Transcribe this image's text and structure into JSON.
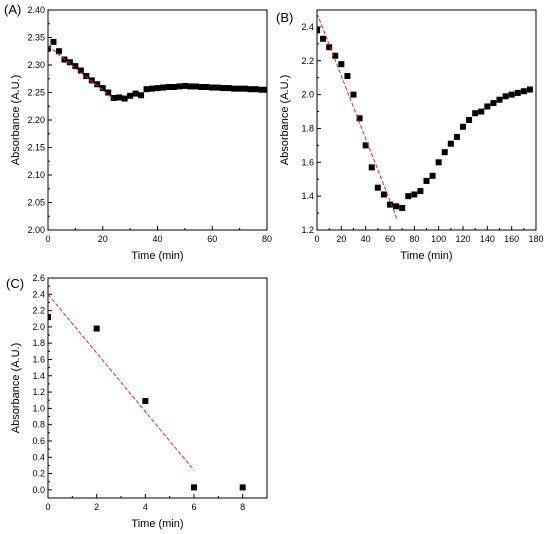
{
  "chart_data": [
    {
      "type": "scatter",
      "panel_label": "(A)",
      "xlabel": "Time (min)",
      "ylabel": "Absorbance (A.U.)",
      "xlim": [
        0,
        80
      ],
      "ylim": [
        2.0,
        2.4
      ],
      "xticks": [
        0,
        20,
        40,
        60,
        80
      ],
      "yticks": [
        2.0,
        2.05,
        2.1,
        2.15,
        2.2,
        2.25,
        2.3,
        2.35,
        2.4
      ],
      "ytick_labels": [
        "2.00",
        "2.05",
        "2.10",
        "2.15",
        "2.20",
        "2.25",
        "2.30",
        "2.35",
        "2.40"
      ],
      "grid": false,
      "marker_color": "#000000",
      "series": [
        {
          "x": [
            0,
            2,
            4,
            6,
            8,
            10,
            12,
            14,
            16,
            18,
            20,
            22,
            24,
            26,
            28,
            30,
            32,
            34,
            36,
            38,
            40,
            42,
            44,
            46,
            48,
            50,
            52,
            54,
            56,
            58,
            60,
            62,
            64,
            66,
            68,
            70,
            72,
            74,
            76,
            78,
            80
          ],
          "y": [
            2.33,
            2.342,
            2.325,
            2.31,
            2.305,
            2.298,
            2.29,
            2.28,
            2.272,
            2.265,
            2.258,
            2.25,
            2.24,
            2.241,
            2.239,
            2.244,
            2.248,
            2.245,
            2.256,
            2.257,
            2.258,
            2.259,
            2.26,
            2.26,
            2.261,
            2.262,
            2.261,
            2.261,
            2.26,
            2.26,
            2.259,
            2.259,
            2.258,
            2.258,
            2.257,
            2.257,
            2.257,
            2.256,
            2.256,
            2.255,
            2.255
          ]
        }
      ],
      "fit_line": {
        "x": [
          0,
          24
        ],
        "y": [
          2.335,
          2.238
        ],
        "color": "#e0281e"
      }
    },
    {
      "type": "scatter",
      "panel_label": "(B)",
      "xlabel": "Time (min)",
      "ylabel": "Absorbance (A.U.)",
      "xlim": [
        0,
        180
      ],
      "ylim": [
        1.2,
        2.5
      ],
      "xticks": [
        0,
        20,
        40,
        60,
        80,
        100,
        120,
        140,
        160,
        180
      ],
      "yticks": [
        1.2,
        1.4,
        1.6,
        1.8,
        2.0,
        2.2,
        2.4
      ],
      "ytick_labels": [
        "1.2",
        "1.4",
        "1.6",
        "1.8",
        "2.0",
        "2.2",
        "2.4"
      ],
      "grid": false,
      "marker_color": "#000000",
      "series": [
        {
          "x": [
            0,
            5,
            10,
            15,
            20,
            25,
            30,
            35,
            40,
            45,
            50,
            55,
            60,
            65,
            70,
            75,
            80,
            85,
            90,
            95,
            100,
            105,
            110,
            115,
            120,
            125,
            130,
            135,
            140,
            145,
            150,
            155,
            160,
            165,
            170,
            175
          ],
          "y": [
            2.38,
            2.33,
            2.28,
            2.23,
            2.18,
            2.11,
            2.0,
            1.86,
            1.7,
            1.57,
            1.45,
            1.41,
            1.35,
            1.34,
            1.33,
            1.4,
            1.41,
            1.43,
            1.49,
            1.52,
            1.6,
            1.66,
            1.71,
            1.75,
            1.81,
            1.85,
            1.89,
            1.9,
            1.93,
            1.95,
            1.97,
            1.99,
            2.0,
            2.01,
            2.02,
            2.03
          ]
        }
      ],
      "fit_line": {
        "x": [
          0,
          66
        ],
        "y": [
          2.48,
          1.26
        ],
        "color": "#e0281e"
      }
    },
    {
      "type": "scatter",
      "panel_label": "(C)",
      "xlabel": "Time (min)",
      "ylabel": "Absorbance (A.U.)",
      "xlim": [
        0,
        9
      ],
      "ylim": [
        -0.1,
        2.6
      ],
      "xticks": [
        0,
        2,
        4,
        6,
        8
      ],
      "yticks": [
        0.0,
        0.2,
        0.4,
        0.6,
        0.8,
        1.0,
        1.2,
        1.4,
        1.6,
        1.8,
        2.0,
        2.2,
        2.4,
        2.6
      ],
      "ytick_labels": [
        "0.0",
        "0.2",
        "0.4",
        "0.6",
        "0.8",
        "1.0",
        "1.2",
        "1.4",
        "1.6",
        "1.8",
        "2.0",
        "2.2",
        "2.4",
        "2.6"
      ],
      "grid": false,
      "marker_color": "#000000",
      "series": [
        {
          "x": [
            0,
            2,
            4,
            6,
            8
          ],
          "y": [
            2.12,
            1.98,
            1.09,
            0.03,
            0.03
          ]
        }
      ],
      "fit_line": {
        "x": [
          0,
          6
        ],
        "y": [
          2.4,
          0.24
        ],
        "color": "#e0281e"
      }
    }
  ]
}
